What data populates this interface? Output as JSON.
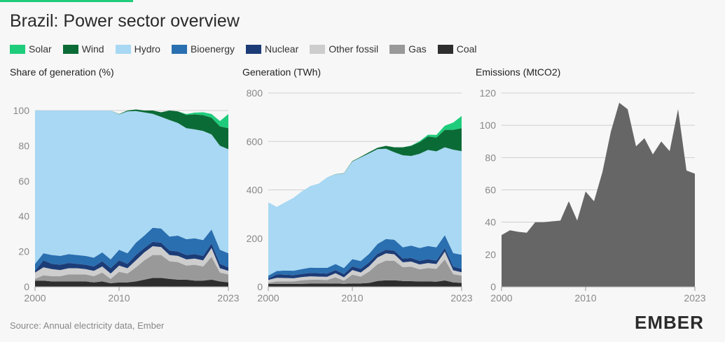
{
  "title": "Brazil: Power sector overview",
  "legend": [
    {
      "label": "Solar",
      "color": "#1fcc7b"
    },
    {
      "label": "Wind",
      "color": "#0b6b36"
    },
    {
      "label": "Hydro",
      "color": "#a8d8f3"
    },
    {
      "label": "Bioenergy",
      "color": "#2a6fb0"
    },
    {
      "label": "Nuclear",
      "color": "#1c3c77"
    },
    {
      "label": "Other fossil",
      "color": "#cdcdcd"
    },
    {
      "label": "Gas",
      "color": "#999999"
    },
    {
      "label": "Coal",
      "color": "#2e2e2e"
    }
  ],
  "panels": {
    "share_title": "Share of generation (%)",
    "generation_title": "Generation (TWh)",
    "emissions_title": "Emissions (MtCO2)"
  },
  "source": "Source: Annual electricity data, Ember",
  "logo": "EMBER",
  "chart_data": [
    {
      "type": "area",
      "title": "Share of generation (%)",
      "xticks": [
        "2000",
        "2010",
        "2023"
      ],
      "yticks": [
        "0",
        "20",
        "40",
        "60",
        "80",
        "100"
      ],
      "ylim": [
        0,
        100
      ],
      "x": [
        2000,
        2001,
        2002,
        2003,
        2004,
        2005,
        2006,
        2007,
        2008,
        2009,
        2010,
        2011,
        2012,
        2013,
        2014,
        2015,
        2016,
        2017,
        2018,
        2019,
        2020,
        2021,
        2022,
        2023
      ],
      "series": [
        {
          "name": "Coal",
          "values": [
            3.5,
            3.5,
            3,
            3,
            3,
            3,
            3,
            2.5,
            3,
            2,
            2.5,
            2.5,
            3,
            4,
            5,
            5,
            4.5,
            4,
            4,
            3.5,
            3.5,
            4,
            3,
            2.5
          ]
        },
        {
          "name": "Gas",
          "values": [
            1,
            3,
            3,
            3,
            4,
            4,
            4,
            3.5,
            5,
            2.5,
            6,
            5,
            8,
            11,
            13,
            13,
            10,
            10,
            8,
            9,
            8,
            13,
            5,
            4.5
          ]
        },
        {
          "name": "Other fossil",
          "values": [
            3.5,
            4.5,
            4,
            3.5,
            3.5,
            3.5,
            3,
            3,
            3.5,
            3,
            3.5,
            3,
            4,
            4.5,
            5,
            4.5,
            3.5,
            3.5,
            3.5,
            3.5,
            3.5,
            5,
            2.5,
            2
          ]
        },
        {
          "name": "Nuclear",
          "values": [
            1,
            4,
            3,
            3,
            3,
            2.5,
            2.5,
            2.5,
            3,
            3,
            3,
            2.5,
            3,
            2.5,
            2.5,
            2.5,
            2.5,
            2.5,
            2.5,
            2.5,
            2.5,
            2.5,
            2.5,
            2
          ]
        },
        {
          "name": "Bioenergy",
          "values": [
            4,
            4,
            5,
            5,
            5,
            5,
            5,
            5,
            5,
            5,
            6,
            6,
            7,
            7,
            8,
            8,
            8,
            9,
            9,
            9,
            9,
            8,
            8,
            8
          ]
        },
        {
          "name": "Hydro",
          "values": [
            87,
            81,
            82,
            82.5,
            81.5,
            82,
            82.5,
            83.5,
            80.5,
            84.5,
            76.8,
            80.5,
            74.7,
            69.9,
            64.6,
            63.4,
            66.1,
            63.9,
            63,
            61.8,
            61.9,
            53.9,
            59,
            59
          ]
        },
        {
          "name": "Wind",
          "values": [
            0,
            0,
            0,
            0,
            0,
            0,
            0,
            0,
            0,
            0,
            0.2,
            0.5,
            0.9,
            1.1,
            1.9,
            2.6,
            5.4,
            6.6,
            7.5,
            8.5,
            9,
            9.5,
            11,
            12
          ]
        },
        {
          "name": "Solar",
          "values": [
            0,
            0,
            0,
            0,
            0,
            0,
            0,
            0,
            0,
            0,
            0,
            0,
            0,
            0,
            0,
            0,
            0,
            0,
            0.5,
            1,
            1.6,
            2.1,
            3,
            8
          ]
        }
      ]
    },
    {
      "type": "area",
      "title": "Generation (TWh)",
      "xticks": [
        "2000",
        "2010",
        "2023"
      ],
      "yticks": [
        "0",
        "200",
        "400",
        "600",
        "800"
      ],
      "ylim": [
        0,
        800
      ],
      "x": [
        2000,
        2001,
        2002,
        2003,
        2004,
        2005,
        2006,
        2007,
        2008,
        2009,
        2010,
        2011,
        2012,
        2013,
        2014,
        2015,
        2016,
        2017,
        2018,
        2019,
        2020,
        2021,
        2022,
        2023
      ],
      "series": [
        {
          "name": "Coal",
          "values": [
            12,
            12,
            12,
            12,
            12,
            13,
            13,
            13,
            14,
            12,
            14,
            14,
            16,
            24,
            27,
            27,
            24,
            23,
            22,
            22,
            21,
            26,
            18,
            16
          ]
        },
        {
          "name": "Gas",
          "values": [
            4,
            10,
            10,
            10,
            15,
            16,
            16,
            15,
            25,
            13,
            36,
            28,
            47,
            69,
            81,
            80,
            57,
            60,
            50,
            55,
            53,
            87,
            34,
            30
          ]
        },
        {
          "name": "Other fossil",
          "values": [
            12,
            15,
            14,
            13,
            13,
            14,
            13,
            13,
            17,
            14,
            19,
            17,
            22,
            28,
            30,
            27,
            20,
            21,
            20,
            21,
            20,
            32,
            16,
            14
          ]
        },
        {
          "name": "Nuclear",
          "values": [
            6,
            14,
            14,
            13,
            13,
            14,
            14,
            13,
            13,
            13,
            15,
            15,
            16,
            15,
            15,
            15,
            15,
            15,
            15,
            16,
            14,
            15,
            15,
            14
          ]
        },
        {
          "name": "Bioenergy",
          "values": [
            12,
            14,
            17,
            18,
            20,
            22,
            22,
            24,
            25,
            25,
            30,
            32,
            35,
            41,
            44,
            45,
            47,
            51,
            53,
            54,
            55,
            53,
            56,
            58
          ]
        },
        {
          "name": "Hydro",
          "values": [
            303,
            265,
            282,
            301,
            321,
            337,
            348,
            374,
            370,
            391,
            403,
            428,
            415,
            391,
            373,
            361,
            380,
            370,
            389,
            397,
            396,
            363,
            427,
            428
          ]
        },
        {
          "name": "Wind",
          "values": [
            0,
            0,
            0,
            0,
            0,
            0,
            0,
            0,
            1,
            1,
            2,
            3,
            5,
            6,
            12,
            21,
            33,
            42,
            48,
            56,
            57,
            72,
            82,
            95
          ]
        },
        {
          "name": "Solar",
          "values": [
            0,
            0,
            0,
            0,
            0,
            0,
            0,
            0,
            0,
            0,
            0,
            0,
            0,
            0,
            0,
            0,
            0,
            1,
            4,
            7,
            11,
            17,
            30,
            50
          ]
        }
      ]
    },
    {
      "type": "area",
      "title": "Emissions (MtCO2)",
      "xticks": [
        "2000",
        "2010",
        "2023"
      ],
      "yticks": [
        "0",
        "20",
        "40",
        "60",
        "80",
        "100",
        "120"
      ],
      "ylim": [
        0,
        120
      ],
      "x": [
        2000,
        2001,
        2002,
        2003,
        2004,
        2005,
        2006,
        2007,
        2008,
        2009,
        2010,
        2011,
        2012,
        2013,
        2014,
        2015,
        2016,
        2017,
        2018,
        2019,
        2020,
        2021,
        2022,
        2023
      ],
      "series": [
        {
          "name": "Emissions",
          "values": [
            32,
            35,
            34,
            33.5,
            40,
            40,
            40.5,
            41,
            53,
            41,
            59,
            53,
            71,
            96,
            114,
            110,
            87,
            92,
            82,
            90,
            84,
            110,
            72,
            70
          ]
        }
      ]
    }
  ]
}
